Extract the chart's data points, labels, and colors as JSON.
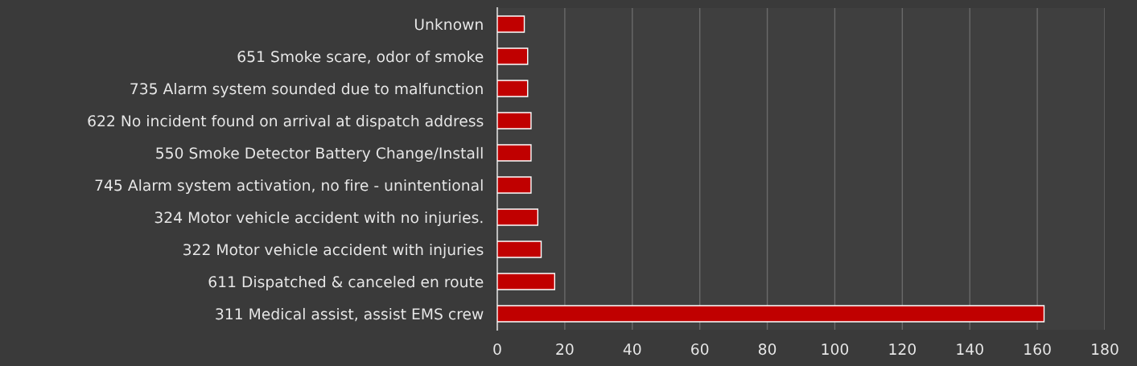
{
  "chart_data": {
    "type": "bar",
    "orientation": "horizontal",
    "categories": [
      "Unknown",
      "651 Smoke scare, odor of smoke",
      "735 Alarm system sounded due to malfunction",
      "622 No incident found on arrival at dispatch address",
      "550 Smoke Detector Battery Change/Install",
      "745 Alarm system activation, no fire - unintentional",
      "324 Motor vehicle accident with no injuries.",
      "322 Motor vehicle accident with injuries",
      "611 Dispatched & canceled en route",
      "311 Medical assist, assist EMS crew"
    ],
    "values": [
      8,
      9,
      9,
      10,
      10,
      10,
      12,
      13,
      17,
      162
    ],
    "color": "#c00000",
    "xlim": [
      0,
      180
    ],
    "xticks": [
      0,
      20,
      40,
      60,
      80,
      100,
      120,
      140,
      160,
      180
    ],
    "grid": "x"
  }
}
